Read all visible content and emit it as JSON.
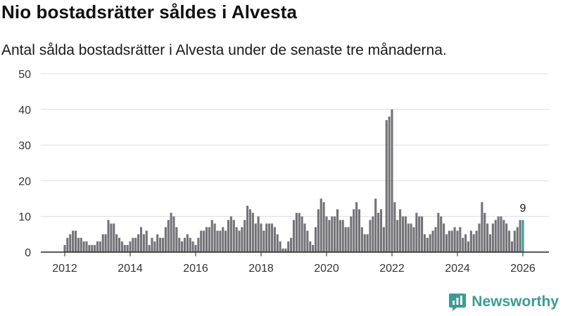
{
  "header": {
    "title": "Nio bostadsrätter såldes i Alvesta",
    "subtitle": "Antal sålda bostadsrätter i Alvesta under de senaste tre månaderna."
  },
  "brand": {
    "name": "Newsworthy"
  },
  "colors": {
    "bar": "#737278",
    "highlight": "#3b9c94",
    "grid": "#dedede",
    "axis": "#222222"
  },
  "chart_data": {
    "type": "bar",
    "title": "Nio bostadsrätter såldes i Alvesta",
    "subtitle": "Antal sålda bostadsrätter i Alvesta under de senaste tre månaderna.",
    "xlabel": "",
    "ylabel": "",
    "ylim": [
      0,
      50
    ],
    "yticks": [
      0,
      10,
      20,
      30,
      40,
      50
    ],
    "xticks": [
      2012,
      2014,
      2016,
      2018,
      2020,
      2022,
      2024,
      2026
    ],
    "x_start": 2012.0,
    "x_step_years": 0.08333,
    "grid": true,
    "values": [
      2,
      4,
      5,
      6,
      6,
      4,
      4,
      3,
      3,
      2,
      2,
      2,
      3,
      3,
      5,
      5,
      9,
      8,
      8,
      5,
      4,
      3,
      2,
      2,
      3,
      4,
      4,
      5,
      7,
      5,
      6,
      2,
      4,
      3,
      5,
      4,
      4,
      7,
      9,
      11,
      10,
      7,
      4,
      3,
      4,
      5,
      4,
      3,
      2,
      4,
      6,
      6,
      7,
      7,
      9,
      8,
      6,
      6,
      7,
      6,
      9,
      10,
      9,
      7,
      6,
      7,
      9,
      13,
      12,
      11,
      8,
      10,
      8,
      6,
      8,
      8,
      8,
      7,
      5,
      3,
      1,
      1,
      3,
      4,
      9,
      11,
      11,
      10,
      8,
      6,
      3,
      2,
      7,
      12,
      15,
      14,
      10,
      9,
      10,
      10,
      12,
      9,
      9,
      7,
      7,
      10,
      12,
      14,
      12,
      7,
      5,
      5,
      9,
      10,
      15,
      11,
      12,
      7,
      37,
      38,
      40,
      14,
      9,
      12,
      10,
      10,
      8,
      8,
      7,
      11,
      10,
      10,
      5,
      4,
      5,
      6,
      7,
      11,
      10,
      8,
      5,
      6,
      6,
      7,
      6,
      7,
      4,
      5,
      3,
      6,
      5,
      6,
      8,
      14,
      11,
      8,
      5,
      8,
      9,
      10,
      10,
      9,
      8,
      6,
      3,
      6,
      7,
      9,
      9
    ],
    "annotations": [
      {
        "text": "9"
      }
    ]
  }
}
